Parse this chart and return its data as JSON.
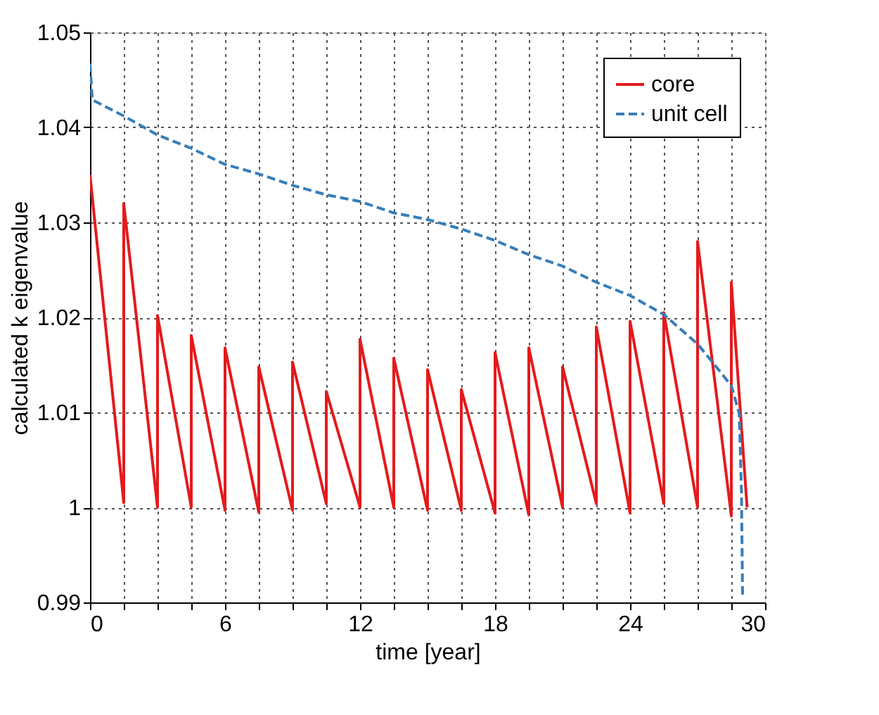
{
  "chart_data": {
    "type": "line",
    "xlabel": "time [year]",
    "ylabel": "calculated k eigenvalue",
    "xlim": [
      0,
      30
    ],
    "ylim": [
      0.99,
      1.05
    ],
    "xticks": [
      0,
      {
        "value": 1.5,
        "label": null
      },
      {
        "value": 3,
        "label": null
      },
      {
        "value": 4.5,
        "label": null
      },
      6,
      {
        "value": 7.5,
        "label": null
      },
      {
        "value": 9,
        "label": null
      },
      {
        "value": 10.5,
        "label": null
      },
      12,
      {
        "value": 13.5,
        "label": null
      },
      {
        "value": 15,
        "label": null
      },
      {
        "value": 16.5,
        "label": null
      },
      18,
      {
        "value": 19.5,
        "label": null
      },
      {
        "value": 21,
        "label": null
      },
      {
        "value": 22.5,
        "label": null
      },
      24,
      {
        "value": 25.5,
        "label": null
      },
      {
        "value": 27,
        "label": null
      },
      {
        "value": 28.5,
        "label": null
      },
      30
    ],
    "yticks": [
      0.99,
      1,
      1.01,
      1.02,
      1.03,
      1.04,
      1.05
    ],
    "grid": true,
    "legend": "top right",
    "marker": "none",
    "series": [
      {
        "name": "core",
        "color": "#e41a1c",
        "line_style": "solid",
        "x": [
          0,
          1.5,
          1.5,
          3,
          3,
          4.5,
          4.5,
          6,
          6,
          7.5,
          7.5,
          9,
          9,
          10.5,
          10.5,
          12,
          12,
          13.5,
          13.5,
          15,
          15,
          16.5,
          16.5,
          18,
          18,
          19.5,
          19.5,
          21,
          21,
          22.5,
          22.5,
          24,
          24,
          25.5,
          25.5,
          27,
          27,
          28.5,
          28.5,
          29.2
        ],
        "values": [
          1.035,
          1.0005,
          1.032,
          1.0,
          1.0202,
          1.0,
          1.0181,
          0.9997,
          1.0168,
          0.9995,
          1.0148,
          0.9997,
          1.0153,
          1.0004,
          1.0122,
          1.0,
          1.0177,
          1.0,
          1.0157,
          0.9997,
          1.0145,
          0.9997,
          1.0124,
          0.9994,
          1.0163,
          0.9992,
          1.0168,
          1.0,
          1.0148,
          1.0004,
          1.019,
          0.9994,
          1.0196,
          1.0004,
          1.0205,
          1.0,
          1.028,
          0.9991,
          1.0237,
          1.0
        ]
      },
      {
        "name": "unit cell",
        "color": "#377eb8",
        "line_style": "dashed",
        "x": [
          0,
          0.1,
          1.5,
          3,
          4.5,
          6,
          7.5,
          9,
          10.5,
          12,
          13.5,
          15,
          16.5,
          18,
          19.5,
          21,
          22.5,
          24,
          25.5,
          27,
          28,
          28.5,
          28.85,
          28.95,
          29.0
        ],
        "values": [
          1.0467,
          1.0429,
          1.0412,
          1.0392,
          1.0378,
          1.0361,
          1.0351,
          1.0339,
          1.0329,
          1.0322,
          1.031,
          1.0303,
          1.0293,
          1.0281,
          1.0266,
          1.0254,
          1.0237,
          1.0223,
          1.0203,
          1.0172,
          1.0143,
          1.0128,
          1.0099,
          1.0017,
          0.9908
        ]
      }
    ]
  }
}
